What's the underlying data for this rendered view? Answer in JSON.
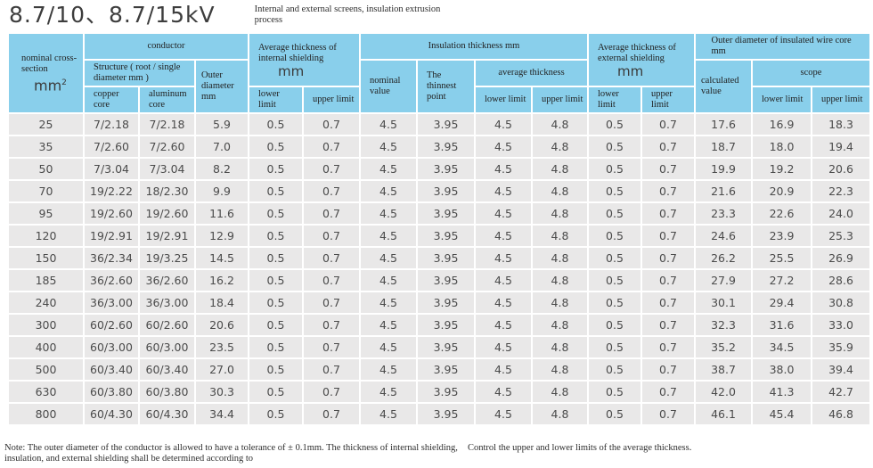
{
  "page": {
    "title": "8.7/10、8.7/15kV",
    "subtitle": "Internal and external screens, insulation extrusion process"
  },
  "table": {
    "headers": {
      "nominal_cross_section": "nominal cross-section",
      "nominal_cross_section_unit": "mm",
      "conductor": "conductor",
      "structure": "Structure ( root / single diameter mm )",
      "copper_core": "copper core",
      "aluminum_core": "aluminum core",
      "outer_diameter": "Outer diameter mm",
      "internal_shielding": "Average thickness of internal shielding",
      "external_shielding": "Average thickness of external shielding",
      "unit_mm": "mm",
      "insulation_thickness": "Insulation thickness mm",
      "nominal_value": "nominal value",
      "thinnest_point": "The thinnest point",
      "average_thickness": "average thickness",
      "outer_diameter_insulated": "Outer diameter of insulated wire core mm",
      "calculated_value": "calculated value",
      "scope": "scope",
      "lower_limit": "lower limit",
      "upper_limit": "upper limit"
    },
    "rows": [
      [
        "25",
        "7/2.18",
        "7/2.18",
        "5.9",
        "0.5",
        "0.7",
        "4.5",
        "3.95",
        "4.5",
        "4.8",
        "0.5",
        "0.7",
        "17.6",
        "16.9",
        "18.3"
      ],
      [
        "35",
        "7/2.60",
        "7/2.60",
        "7.0",
        "0.5",
        "0.7",
        "4.5",
        "3.95",
        "4.5",
        "4.8",
        "0.5",
        "0.7",
        "18.7",
        "18.0",
        "19.4"
      ],
      [
        "50",
        "7/3.04",
        "7/3.04",
        "8.2",
        "0.5",
        "0.7",
        "4.5",
        "3.95",
        "4.5",
        "4.8",
        "0.5",
        "0.7",
        "19.9",
        "19.2",
        "20.6"
      ],
      [
        "70",
        "19/2.22",
        "18/2.30",
        "9.9",
        "0.5",
        "0.7",
        "4.5",
        "3.95",
        "4.5",
        "4.8",
        "0.5",
        "0.7",
        "21.6",
        "20.9",
        "22.3"
      ],
      [
        "95",
        "19/2.60",
        "19/2.60",
        "11.6",
        "0.5",
        "0.7",
        "4.5",
        "3.95",
        "4.5",
        "4.8",
        "0.5",
        "0.7",
        "23.3",
        "22.6",
        "24.0"
      ],
      [
        "120",
        "19/2.91",
        "19/2.91",
        "12.9",
        "0.5",
        "0.7",
        "4.5",
        "3.95",
        "4.5",
        "4.8",
        "0.5",
        "0.7",
        "24.6",
        "23.9",
        "25.3"
      ],
      [
        "150",
        "36/2.34",
        "19/3.25",
        "14.5",
        "0.5",
        "0.7",
        "4.5",
        "3.95",
        "4.5",
        "4.8",
        "0.5",
        "0.7",
        "26.2",
        "25.5",
        "26.9"
      ],
      [
        "185",
        "36/2.60",
        "36/2.60",
        "16.2",
        "0.5",
        "0.7",
        "4.5",
        "3.95",
        "4.5",
        "4.8",
        "0.5",
        "0.7",
        "27.9",
        "27.2",
        "28.6"
      ],
      [
        "240",
        "36/3.00",
        "36/3.00",
        "18.4",
        "0.5",
        "0.7",
        "4.5",
        "3.95",
        "4.5",
        "4.8",
        "0.5",
        "0.7",
        "30.1",
        "29.4",
        "30.8"
      ],
      [
        "300",
        "60/2.60",
        "60/2.60",
        "20.6",
        "0.5",
        "0.7",
        "4.5",
        "3.95",
        "4.5",
        "4.8",
        "0.5",
        "0.7",
        "32.3",
        "31.6",
        "33.0"
      ],
      [
        "400",
        "60/3.00",
        "60/3.00",
        "23.5",
        "0.5",
        "0.7",
        "4.5",
        "3.95",
        "4.5",
        "4.8",
        "0.5",
        "0.7",
        "35.2",
        "34.5",
        "35.9"
      ],
      [
        "500",
        "60/3.40",
        "60/3.40",
        "27.0",
        "0.5",
        "0.7",
        "4.5",
        "3.95",
        "4.5",
        "4.8",
        "0.5",
        "0.7",
        "38.7",
        "38.0",
        "39.4"
      ],
      [
        "630",
        "60/3.80",
        "60/3.80",
        "30.3",
        "0.5",
        "0.7",
        "4.5",
        "3.95",
        "4.5",
        "4.8",
        "0.5",
        "0.7",
        "42.0",
        "41.3",
        "42.7"
      ],
      [
        "800",
        "60/4.30",
        "60/4.30",
        "34.4",
        "0.5",
        "0.7",
        "4.5",
        "3.95",
        "4.5",
        "4.8",
        "0.5",
        "0.7",
        "46.1",
        "45.4",
        "46.8"
      ]
    ]
  },
  "notes": {
    "left": "Note: The outer diameter of the conductor is allowed to have a tolerance of ± 0.1mm. The thickness of internal shielding, insulation, and external shielding shall be determined according to",
    "right": "Control the upper and lower limits of the average thickness."
  },
  "colors": {
    "header_blue": "#89cfeb",
    "row_gray": "#e9e8e8",
    "grid_white": "#ffffff",
    "text": "#3d3d3d"
  }
}
